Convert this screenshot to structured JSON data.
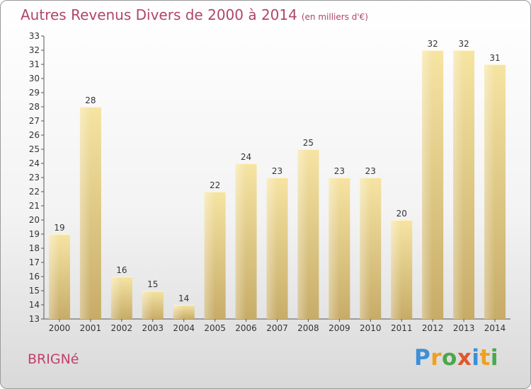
{
  "header": {
    "title": "Autres Revenus Divers de 2000 à 2014",
    "unit": "(en milliers d'€)"
  },
  "footer": {
    "place": "BRIGNé",
    "brand_letters": [
      {
        "ch": "P",
        "color": "#3d8fd6"
      },
      {
        "ch": "r",
        "color": "#f0a020"
      },
      {
        "ch": "o",
        "color": "#49a84b"
      },
      {
        "ch": "x",
        "color": "#e0572a"
      },
      {
        "ch": "i",
        "color": "#3d8fd6"
      },
      {
        "ch": "t",
        "color": "#f0a020"
      },
      {
        "ch": "i",
        "color": "#49a84b"
      }
    ]
  },
  "chart_data": {
    "type": "bar",
    "title": "Autres Revenus Divers de 2000 à 2014",
    "subtitle": "(en milliers d'€)",
    "xlabel": "",
    "ylabel": "",
    "categories": [
      "2000",
      "2001",
      "2002",
      "2003",
      "2004",
      "2005",
      "2006",
      "2007",
      "2008",
      "2009",
      "2010",
      "2011",
      "2012",
      "2013",
      "2014"
    ],
    "values": [
      19,
      28,
      16,
      15,
      14,
      22,
      24,
      23,
      25,
      23,
      23,
      20,
      32,
      32,
      31
    ],
    "ylim": [
      13,
      33
    ],
    "yticks": [
      13,
      14,
      15,
      16,
      17,
      18,
      19,
      20,
      21,
      22,
      23,
      24,
      25,
      26,
      27,
      28,
      29,
      30,
      31,
      32,
      33
    ],
    "grid": false,
    "bar_color": "#e8cf85"
  }
}
